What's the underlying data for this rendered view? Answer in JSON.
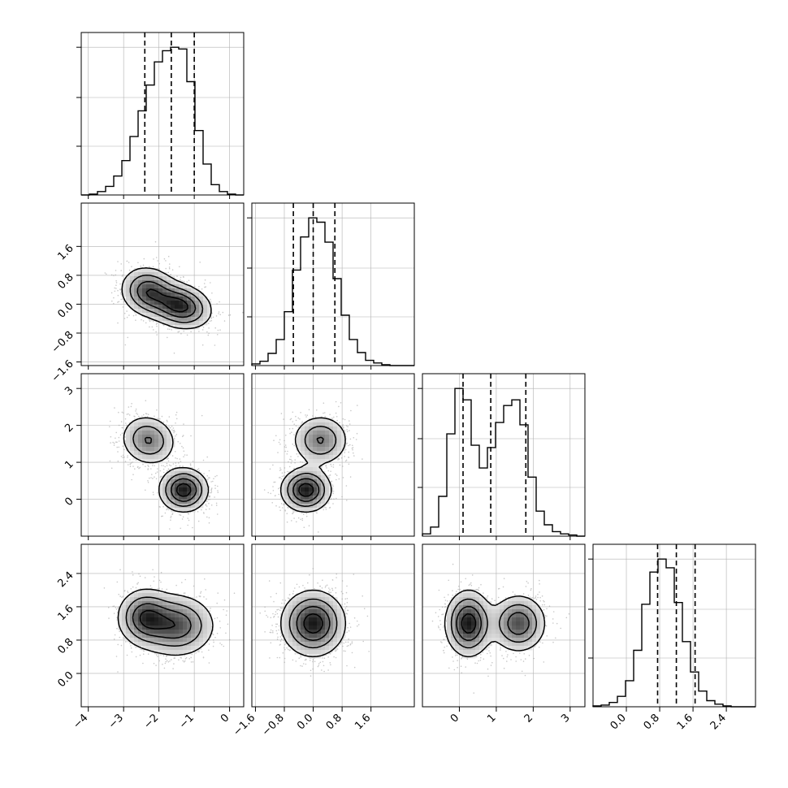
{
  "chart_data": {
    "type": "corner",
    "dimensions": 4,
    "colors": {
      "line": "#000000",
      "grid": "#b0b0b0",
      "scatter": "#9a9a9a"
    },
    "ranges": [
      [
        -4.2,
        0.4
      ],
      [
        -1.7,
        2.8
      ],
      [
        -1.0,
        3.4
      ],
      [
        -0.8,
        3.1
      ]
    ],
    "ticks": [
      {
        "values": [
          -4,
          -3,
          -2,
          -1,
          0
        ],
        "labels": [
          "−4",
          "−3",
          "−2",
          "−1",
          "0"
        ]
      },
      {
        "values": [
          -1.6,
          -0.8,
          0.0,
          0.8,
          1.6
        ],
        "labels": [
          "−1.6",
          "−0.8",
          "0.0",
          "0.8",
          "1.6"
        ]
      },
      {
        "values": [
          0,
          1,
          2,
          3
        ],
        "labels": [
          "0",
          "1",
          "2",
          "3"
        ]
      },
      {
        "values": [
          0.0,
          0.8,
          1.6,
          2.4
        ],
        "labels": [
          "0.0",
          "0.8",
          "1.6",
          "2.4"
        ]
      }
    ],
    "quantiles": [
      [
        -2.4,
        -1.65,
        -1.0
      ],
      [
        -0.55,
        0.0,
        0.6
      ],
      [
        0.1,
        0.85,
        1.8
      ],
      [
        0.75,
        1.2,
        1.65
      ]
    ],
    "histograms": [
      {
        "edges_start": -4.2,
        "bin_width": 0.23,
        "counts": [
          0,
          1,
          4,
          10,
          22,
          40,
          68,
          98,
          128,
          155,
          168,
          172,
          170,
          132,
          75,
          36,
          12,
          4,
          1,
          0
        ]
      },
      {
        "edges_start": -1.7,
        "bin_width": 0.225,
        "counts": [
          2,
          5,
          14,
          30,
          62,
          110,
          148,
          170,
          165,
          142,
          100,
          58,
          30,
          15,
          6,
          3,
          1,
          0,
          0,
          0
        ]
      },
      {
        "edges_start": -1.0,
        "bin_width": 0.22,
        "counts": [
          2,
          8,
          35,
          90,
          130,
          120,
          80,
          60,
          78,
          100,
          115,
          120,
          98,
          52,
          22,
          10,
          4,
          2,
          1,
          0
        ]
      },
      {
        "edges_start": -0.8,
        "bin_width": 0.195,
        "counts": [
          1,
          2,
          5,
          12,
          30,
          65,
          118,
          155,
          170,
          160,
          120,
          75,
          40,
          18,
          7,
          3,
          1,
          0,
          0,
          0
        ]
      }
    ],
    "pairs": [
      {
        "row": 1,
        "col": 0,
        "components": [
          {
            "mx": -1.4,
            "my": -0.05,
            "sx": 0.45,
            "sy": 0.32,
            "rho": -0.2,
            "w": 0.55
          },
          {
            "mx": -2.3,
            "my": 0.35,
            "sx": 0.4,
            "sy": 0.35,
            "rho": -0.1,
            "w": 0.45
          }
        ]
      },
      {
        "row": 2,
        "col": 0,
        "components": [
          {
            "mx": -1.3,
            "my": 0.25,
            "sx": 0.35,
            "sy": 0.3,
            "rho": 0.0,
            "w": 0.55
          },
          {
            "mx": -2.3,
            "my": 1.6,
            "sx": 0.4,
            "sy": 0.35,
            "rho": -0.1,
            "w": 0.45
          }
        ]
      },
      {
        "row": 2,
        "col": 1,
        "components": [
          {
            "mx": -0.2,
            "my": 0.25,
            "sx": 0.35,
            "sy": 0.3,
            "rho": 0.0,
            "w": 0.55
          },
          {
            "mx": 0.2,
            "my": 1.6,
            "sx": 0.4,
            "sy": 0.35,
            "rho": 0.0,
            "w": 0.45
          }
        ]
      },
      {
        "row": 3,
        "col": 0,
        "components": [
          {
            "mx": -1.5,
            "my": 1.15,
            "sx": 0.55,
            "sy": 0.38,
            "rho": 0.0,
            "w": 0.6
          },
          {
            "mx": -2.4,
            "my": 1.35,
            "sx": 0.4,
            "sy": 0.35,
            "rho": 0.0,
            "w": 0.4
          }
        ]
      },
      {
        "row": 3,
        "col": 1,
        "components": [
          {
            "mx": 0.0,
            "my": 1.2,
            "sx": 0.45,
            "sy": 0.4,
            "rho": 0.0,
            "w": 1.0
          }
        ]
      },
      {
        "row": 3,
        "col": 2,
        "components": [
          {
            "mx": 0.25,
            "my": 1.2,
            "sx": 0.32,
            "sy": 0.4,
            "rho": 0.0,
            "w": 0.55
          },
          {
            "mx": 1.6,
            "my": 1.2,
            "sx": 0.38,
            "sy": 0.35,
            "rho": 0.0,
            "w": 0.45
          }
        ]
      }
    ]
  }
}
